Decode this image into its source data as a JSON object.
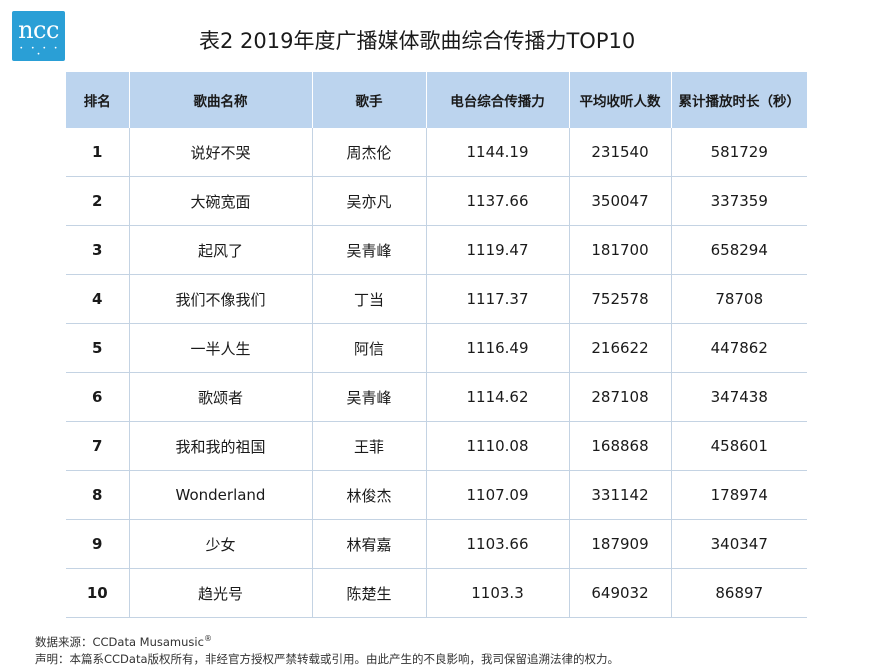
{
  "logo": {
    "text": "ncc",
    "dots": "• • • • •",
    "color": "#2a9fd6"
  },
  "title": "表2  2019年度广播媒体歌曲综合传播力TOP10",
  "table": {
    "header_color": "#bcd4ee",
    "columns": [
      "排名",
      "歌曲名称",
      "歌手",
      "电台综合传播力",
      "平均收听人数",
      "累计播放时长（秒）"
    ],
    "rows": [
      {
        "rank": "1",
        "song": "说好不哭",
        "artist": "周杰伦",
        "power": "1144.19",
        "listeners": "231540",
        "duration": "581729"
      },
      {
        "rank": "2",
        "song": "大碗宽面",
        "artist": "吴亦凡",
        "power": "1137.66",
        "listeners": "350047",
        "duration": "337359"
      },
      {
        "rank": "3",
        "song": "起风了",
        "artist": "吴青峰",
        "power": "1119.47",
        "listeners": "181700",
        "duration": "658294"
      },
      {
        "rank": "4",
        "song": "我们不像我们",
        "artist": "丁当",
        "power": "1117.37",
        "listeners": "752578",
        "duration": "78708"
      },
      {
        "rank": "5",
        "song": "一半人生",
        "artist": "阿信",
        "power": "1116.49",
        "listeners": "216622",
        "duration": "447862"
      },
      {
        "rank": "6",
        "song": "歌颂者",
        "artist": "吴青峰",
        "power": "1114.62",
        "listeners": "287108",
        "duration": "347438"
      },
      {
        "rank": "7",
        "song": "我和我的祖国",
        "artist": "王菲",
        "power": "1110.08",
        "listeners": "168868",
        "duration": "458601"
      },
      {
        "rank": "8",
        "song": "Wonderland",
        "artist": "林俊杰",
        "power": "1107.09",
        "listeners": "331142",
        "duration": "178974"
      },
      {
        "rank": "9",
        "song": "少女",
        "artist": "林宥嘉",
        "power": "1103.66",
        "listeners": "187909",
        "duration": "340347"
      },
      {
        "rank": "10",
        "song": "趋光号",
        "artist": "陈楚生",
        "power": "1103.3",
        "listeners": "649032",
        "duration": "86897"
      }
    ]
  },
  "footer": {
    "source": "数据来源：CCData Musamusic",
    "source_mark": "®",
    "statement": "声明：本篇系CCData版权所有，非经官方授权严禁转载或引用。由此产生的不良影响，我司保留追溯法律的权力。"
  }
}
